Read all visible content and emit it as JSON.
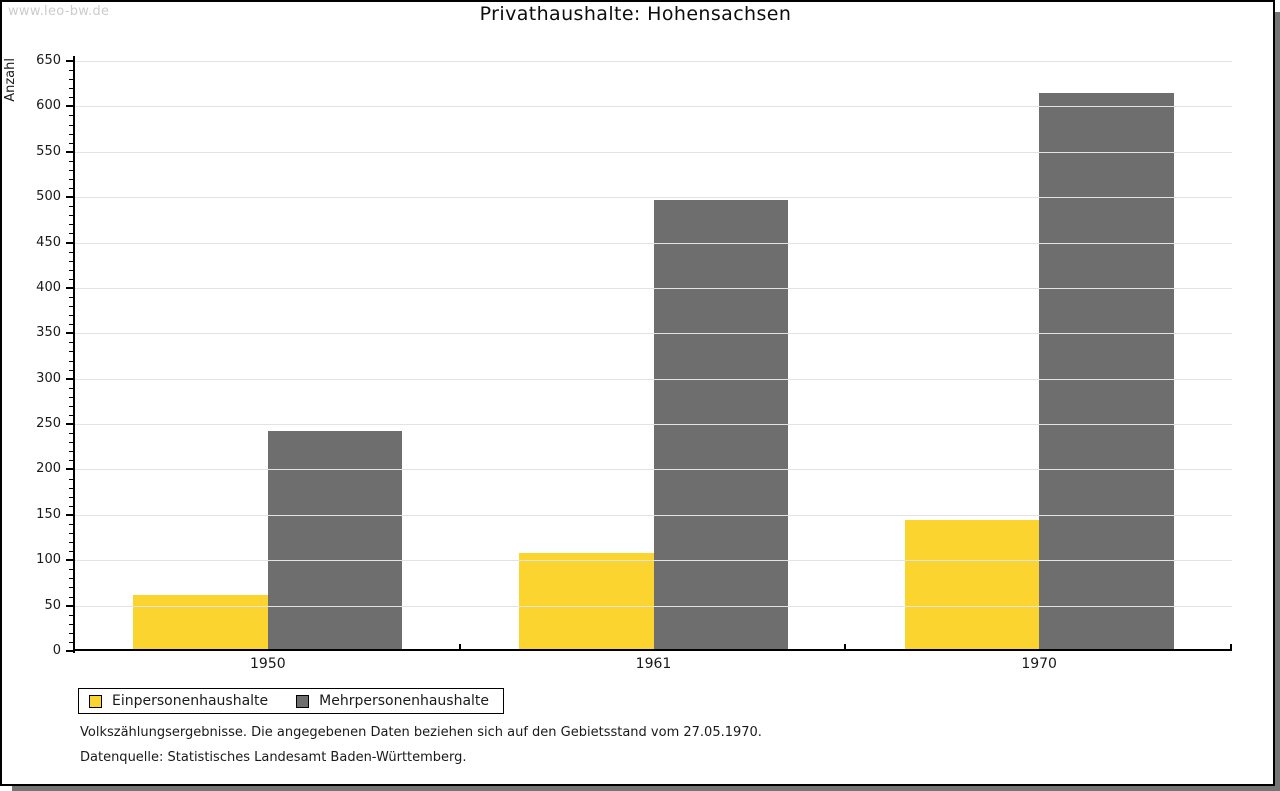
{
  "watermark": "www.leo-bw.de",
  "title": "Privathaushalte: Hohensachsen",
  "chart_data": {
    "type": "bar",
    "title": "Privathaushalte: Hohensachsen",
    "categories": [
      "1950",
      "1961",
      "1970"
    ],
    "series": [
      {
        "name": "Einpersonenhaushalte",
        "color": "#FCD42F",
        "values": [
          59,
          106,
          142
        ]
      },
      {
        "name": "Mehrpersonenhaushalte",
        "color": "#6E6E6E",
        "values": [
          240,
          495,
          613
        ]
      }
    ],
    "xlabel": "",
    "ylabel": "Anzahl",
    "ylim": [
      0,
      650
    ],
    "ytick_step": 50,
    "yminor_step": 10,
    "grid": true,
    "gridline_color": "#e3e3e3",
    "legend_position": "bottom-left"
  },
  "footnotes": [
    "Volkszählungsergebnisse. Die angegebenen Daten beziehen sich auf den Gebietsstand vom 27.05.1970.",
    "Datenquelle: Statistisches Landesamt Baden-Württemberg."
  ]
}
